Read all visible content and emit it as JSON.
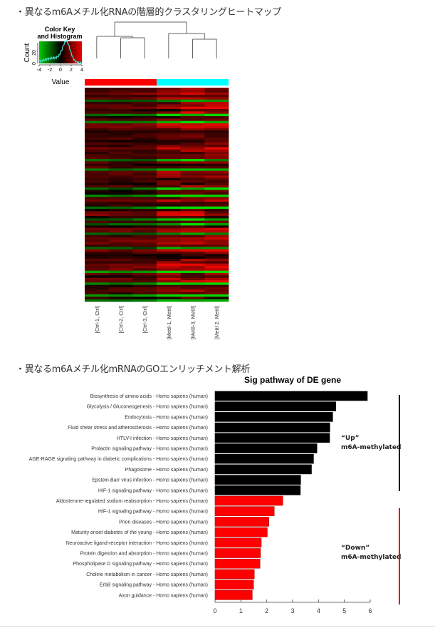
{
  "sections": [
    {
      "title": "・異なるm6Aメチル化RNAの階層的クラスタリングヒートマップ"
    },
    {
      "title": "・異なるm6Aメチル化mRNAのGOエンリッチメント解析"
    }
  ],
  "chart_data": [
    {
      "type": "heatmap",
      "title": "",
      "color_key": {
        "title_line1": "Color Key",
        "title_line2": "and Histogram",
        "ylabel": "Count",
        "xlabel": "Value",
        "x_ticks": [
          "-4",
          "-2",
          "0",
          "2",
          "4"
        ],
        "y_ticks": [
          "0",
          "20"
        ],
        "range": [
          -4,
          4
        ],
        "low_color": "#00cc00",
        "mid_color": "#000000",
        "high_color": "#ee0000",
        "histogram_color": "#40e0d0"
      },
      "columns": [
        "[Ctrl-1, Ctrl]",
        "[Ctrl-2, Ctrl]",
        "[Ctrl-3, Ctrl]",
        "[Mettl-1, Mettl]",
        "[Mettl-3, Mettl]",
        "[Mettl 2, Mettl]"
      ],
      "column_groups": [
        {
          "name": "Ctrl",
          "color": "#ff0000",
          "count": 3
        },
        {
          "name": "Mettl",
          "color": "#00ffff",
          "count": 3
        }
      ],
      "dendrogram": "((Ctrl-1,(Ctrl-2,Ctrl-3)),(Mettl-1,(Mettl-3,Mettl 2)))",
      "rows_approx": 90
    },
    {
      "type": "bar",
      "orientation": "horizontal",
      "title": "Sig pathway of DE gene",
      "xlabel": "",
      "ylabel": "",
      "xlim": [
        0,
        6
      ],
      "x_ticks": [
        "0",
        "1",
        "2",
        "3",
        "4",
        "5",
        "6"
      ],
      "grid": false,
      "categories": [
        "Biosynthesis of amino acids - Homo sapiens (human)",
        "Glycolysis / Gluconeogenesis - Homo sapiens (human)",
        "Endocytosis - Homo sapiens (human)",
        "Fluid shear stress and atherosclerosis - Homo sapiens (human)",
        "HTLV-I infection - Homo sapiens (human)",
        "Prolactin signaling pathway - Homo sapiens (human)",
        "AGE-RAGE signaling pathway in diabetic complications - Homo sapiens (human)",
        "Phagosome - Homo sapiens (human)",
        "Epstein-Barr virus infection - Homo sapiens (human)",
        "HIF-1 signaling pathway - Homo sapiens (human)",
        "Aldosterone-regulated sodium reabsorption - Homo sapiens (human)",
        "HIF-1 signaling pathway - Homo sapiens (human)",
        "Prion diseases - Homo sapiens (human)",
        "Maturity onset diabetes of the young - Homo sapiens (human)",
        "Neuroactive ligand-receptor interaction - Homo sapiens (human)",
        "Protein digestion and absorption - Homo sapiens (human)",
        "Phospholipase D signaling pathway - Homo sapiens (human)",
        "Choline metabolism in cancer - Homo sapiens (human)",
        "ErbB signaling pathway - Homo sapiens (human)",
        "Axon guidance - Homo sapiens (human)"
      ],
      "series": [
        {
          "name": "Up m6A-methylated",
          "color": "#000000",
          "values": [
            5.89,
            4.67,
            4.55,
            4.44,
            4.43,
            3.94,
            3.81,
            3.73,
            3.31,
            3.3,
            null,
            null,
            null,
            null,
            null,
            null,
            null,
            null,
            null,
            null
          ]
        },
        {
          "name": "Down m6A-methylated",
          "color": "#ff0000",
          "values": [
            null,
            null,
            null,
            null,
            null,
            null,
            null,
            null,
            null,
            null,
            2.62,
            2.29,
            2.08,
            2.02,
            1.79,
            1.76,
            1.74,
            1.52,
            1.49,
            1.44
          ]
        }
      ],
      "annotations": [
        {
          "line1": "“Up”",
          "line2": "m6A-methylated",
          "color": "#000000",
          "group": "up"
        },
        {
          "line1": "“Down”",
          "line2": "m6A-methylated",
          "color": "#e00000",
          "group": "down"
        }
      ]
    }
  ]
}
